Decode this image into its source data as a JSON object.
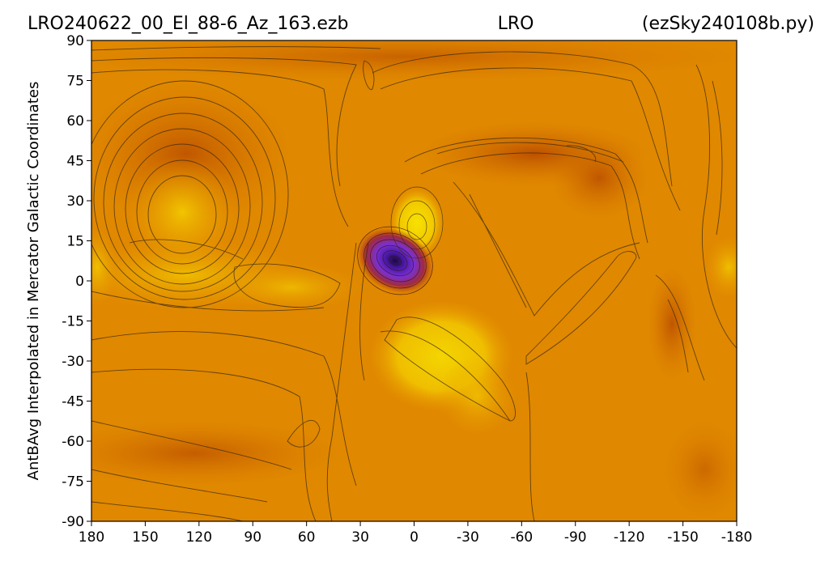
{
  "chart_data": {
    "type": "heatmap",
    "title_left": "LRO240622_00_El_88-6_Az_163.ezb",
    "title_center": "LRO",
    "title_right": "(ezSky240108b.py)",
    "xlabel": "",
    "ylabel": "AntBAvg Interpolated in Mercator Galactic Coordinates",
    "x_ticks": [
      "180",
      "150",
      "120",
      "90",
      "60",
      "30",
      "0",
      "-30",
      "-60",
      "-90",
      "-120",
      "-150",
      "-180"
    ],
    "y_ticks": [
      "90",
      "75",
      "60",
      "45",
      "30",
      "15",
      "0",
      "-15",
      "-30",
      "-45",
      "-60",
      "-75",
      "-90"
    ],
    "xlim": [
      180,
      -180
    ],
    "ylim": [
      -90,
      90
    ],
    "grid": false,
    "colormap": "gnuplot-style (purple low, orange mid, yellow high)",
    "colors": {
      "background": "#e08800",
      "high": "#f5d000",
      "low": "#4a1aa8",
      "dark": "#c25a00",
      "contour": "#3a2a10"
    },
    "features": [
      {
        "name": "minimum",
        "x": 12,
        "y": 6,
        "level": "lowest"
      },
      {
        "name": "maximum",
        "x": 2,
        "y": 20,
        "level": "highest"
      },
      {
        "name": "high-region",
        "x": -10,
        "y": -25,
        "level": "high"
      },
      {
        "name": "ring-center",
        "x": 122,
        "y": 20,
        "level": "high"
      }
    ]
  }
}
